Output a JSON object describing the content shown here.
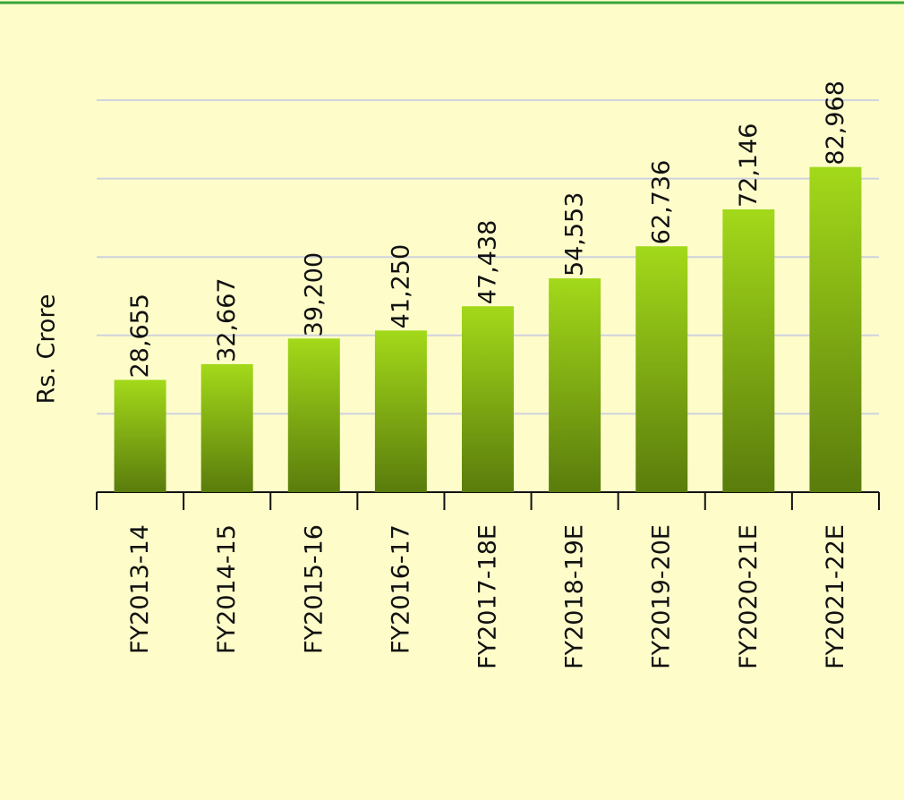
{
  "chart_data": {
    "type": "bar",
    "y_label": "Rs. Crore",
    "categories": [
      "FY2013-14",
      "FY2014-15",
      "FY2015-16",
      "FY2016-17",
      "FY2017-18E",
      "FY2018-19E",
      "FY2019-20E",
      "FY2020-21E",
      "FY2021-22E"
    ],
    "values": [
      28655,
      32667,
      39200,
      41250,
      47438,
      54553,
      62736,
      72146,
      82968
    ],
    "value_labels": [
      "28,655",
      "32,667",
      "39,200",
      "41,250",
      "47,438",
      "54,553",
      "62,736",
      "72,146",
      "82,968"
    ],
    "color": "#8fc414",
    "ylim": [
      0,
      100000
    ],
    "yticks": [
      20000,
      40000,
      60000,
      80000,
      100000
    ],
    "grid": true
  }
}
